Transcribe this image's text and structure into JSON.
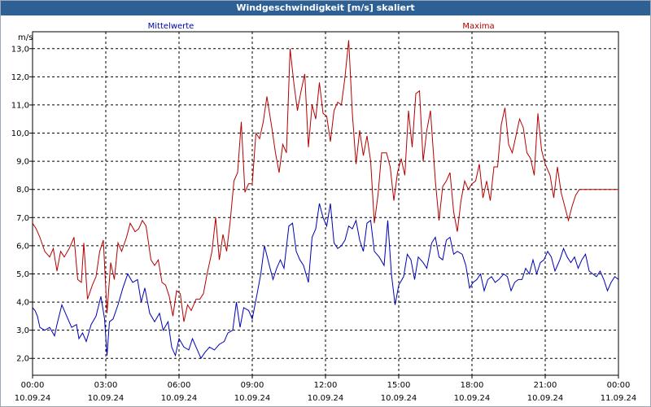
{
  "window": {
    "title": "Windgeschwindigkeit [m/s] skaliert"
  },
  "chart_data": {
    "type": "line",
    "title": "Windgeschwindigkeit [m/s] skaliert",
    "ylabel": "m/s",
    "xlabel": "",
    "ylim": [
      1.4,
      13.6
    ],
    "xlim": [
      0,
      24
    ],
    "yticks": [
      "2,0",
      "3,0",
      "4,0",
      "5,0",
      "6,0",
      "7,0",
      "8,0",
      "9,0",
      "10,0",
      "11,0",
      "12,0",
      "13,0"
    ],
    "xticks": [
      {
        "time": "00:00",
        "date": "10.09.24"
      },
      {
        "time": "03:00",
        "date": "10.09.24"
      },
      {
        "time": "06:00",
        "date": "10.09.24"
      },
      {
        "time": "09:00",
        "date": "10.09.24"
      },
      {
        "time": "12:00",
        "date": "10.09.24"
      },
      {
        "time": "15:00",
        "date": "10.09.24"
      },
      {
        "time": "18:00",
        "date": "10.09.24"
      },
      {
        "time": "21:00",
        "date": "10.09.24"
      },
      {
        "time": "00:00",
        "date": "11.09.24"
      }
    ],
    "grid": true,
    "series": [
      {
        "name": "Mittelwerte",
        "color": "#0000b4",
        "values": [
          [
            0.0,
            3.8
          ],
          [
            0.1,
            3.7
          ],
          [
            0.2,
            3.5
          ],
          [
            0.3,
            3.1
          ],
          [
            0.5,
            3.0
          ],
          [
            0.7,
            3.1
          ],
          [
            0.9,
            2.8
          ],
          [
            1.0,
            3.2
          ],
          [
            1.2,
            3.9
          ],
          [
            1.4,
            3.5
          ],
          [
            1.6,
            3.1
          ],
          [
            1.8,
            3.2
          ],
          [
            1.9,
            2.7
          ],
          [
            2.05,
            2.9
          ],
          [
            2.2,
            2.6
          ],
          [
            2.4,
            3.2
          ],
          [
            2.6,
            3.5
          ],
          [
            2.8,
            4.2
          ],
          [
            2.95,
            3.4
          ],
          [
            3.05,
            2.1
          ],
          [
            3.15,
            3.3
          ],
          [
            3.3,
            3.4
          ],
          [
            3.5,
            3.9
          ],
          [
            3.7,
            4.5
          ],
          [
            3.9,
            5.0
          ],
          [
            4.1,
            4.7
          ],
          [
            4.3,
            4.8
          ],
          [
            4.45,
            4.0
          ],
          [
            4.6,
            4.5
          ],
          [
            4.8,
            3.6
          ],
          [
            5.0,
            3.3
          ],
          [
            5.2,
            3.6
          ],
          [
            5.35,
            3.0
          ],
          [
            5.55,
            3.3
          ],
          [
            5.7,
            2.4
          ],
          [
            5.85,
            2.1
          ],
          [
            6.0,
            2.7
          ],
          [
            6.2,
            2.4
          ],
          [
            6.4,
            2.3
          ],
          [
            6.55,
            2.7
          ],
          [
            6.75,
            2.3
          ],
          [
            6.9,
            2.0
          ],
          [
            7.05,
            2.2
          ],
          [
            7.25,
            2.4
          ],
          [
            7.45,
            2.3
          ],
          [
            7.65,
            2.5
          ],
          [
            7.85,
            2.6
          ],
          [
            8.0,
            2.9
          ],
          [
            8.2,
            3.0
          ],
          [
            8.35,
            4.0
          ],
          [
            8.5,
            3.1
          ],
          [
            8.65,
            3.8
          ],
          [
            8.85,
            3.7
          ],
          [
            9.0,
            3.4
          ],
          [
            9.2,
            4.3
          ],
          [
            9.35,
            5.0
          ],
          [
            9.5,
            6.0
          ],
          [
            9.7,
            5.3
          ],
          [
            9.85,
            4.8
          ],
          [
            10.0,
            5.2
          ],
          [
            10.15,
            5.5
          ],
          [
            10.3,
            5.2
          ],
          [
            10.5,
            6.7
          ],
          [
            10.65,
            6.8
          ],
          [
            10.8,
            5.8
          ],
          [
            10.95,
            5.5
          ],
          [
            11.1,
            5.3
          ],
          [
            11.3,
            4.7
          ],
          [
            11.45,
            6.3
          ],
          [
            11.6,
            6.6
          ],
          [
            11.75,
            7.5
          ],
          [
            11.9,
            7.0
          ],
          [
            12.05,
            6.7
          ],
          [
            12.2,
            7.5
          ],
          [
            12.35,
            6.1
          ],
          [
            12.5,
            5.9
          ],
          [
            12.65,
            6.0
          ],
          [
            12.8,
            6.2
          ],
          [
            12.95,
            6.7
          ],
          [
            13.1,
            6.6
          ],
          [
            13.25,
            6.9
          ],
          [
            13.4,
            6.2
          ],
          [
            13.55,
            5.8
          ],
          [
            13.7,
            6.8
          ],
          [
            13.85,
            6.9
          ],
          [
            14.0,
            5.8
          ],
          [
            14.2,
            5.6
          ],
          [
            14.4,
            5.3
          ],
          [
            14.55,
            6.9
          ],
          [
            14.7,
            5.0
          ],
          [
            14.85,
            3.9
          ],
          [
            15.0,
            4.6
          ],
          [
            15.2,
            4.9
          ],
          [
            15.35,
            5.7
          ],
          [
            15.5,
            5.5
          ],
          [
            15.65,
            4.8
          ],
          [
            15.8,
            5.6
          ],
          [
            16.0,
            5.4
          ],
          [
            16.15,
            5.2
          ],
          [
            16.35,
            6.1
          ],
          [
            16.5,
            6.3
          ],
          [
            16.65,
            5.6
          ],
          [
            16.8,
            5.5
          ],
          [
            16.95,
            6.2
          ],
          [
            17.1,
            6.3
          ],
          [
            17.25,
            5.7
          ],
          [
            17.4,
            5.8
          ],
          [
            17.6,
            5.7
          ],
          [
            17.75,
            5.3
          ],
          [
            17.9,
            4.5
          ],
          [
            18.05,
            4.7
          ],
          [
            18.2,
            4.8
          ],
          [
            18.35,
            5.0
          ],
          [
            18.5,
            4.4
          ],
          [
            18.65,
            4.8
          ],
          [
            18.8,
            4.9
          ],
          [
            18.95,
            4.7
          ],
          [
            19.1,
            4.8
          ],
          [
            19.3,
            5.0
          ],
          [
            19.45,
            4.9
          ],
          [
            19.6,
            4.4
          ],
          [
            19.75,
            4.7
          ],
          [
            19.9,
            4.8
          ],
          [
            20.05,
            4.8
          ],
          [
            20.2,
            5.2
          ],
          [
            20.35,
            5.0
          ],
          [
            20.5,
            5.5
          ],
          [
            20.65,
            5.0
          ],
          [
            20.8,
            5.4
          ],
          [
            20.95,
            5.5
          ],
          [
            21.1,
            5.8
          ],
          [
            21.25,
            5.6
          ],
          [
            21.4,
            5.1
          ],
          [
            21.6,
            5.5
          ],
          [
            21.75,
            5.9
          ],
          [
            21.9,
            5.6
          ],
          [
            22.05,
            5.4
          ],
          [
            22.2,
            5.6
          ],
          [
            22.35,
            5.2
          ],
          [
            22.5,
            5.5
          ],
          [
            22.65,
            5.7
          ],
          [
            22.8,
            5.1
          ],
          [
            22.95,
            5.0
          ],
          [
            23.1,
            4.9
          ],
          [
            23.25,
            5.1
          ],
          [
            23.4,
            4.8
          ],
          [
            23.55,
            4.4
          ],
          [
            23.7,
            4.7
          ],
          [
            23.85,
            4.9
          ],
          [
            24.0,
            4.8
          ]
        ]
      },
      {
        "name": "Maxima",
        "color": "#b40000",
        "values": [
          [
            0.0,
            6.8
          ],
          [
            0.15,
            6.6
          ],
          [
            0.3,
            6.3
          ],
          [
            0.5,
            5.8
          ],
          [
            0.7,
            5.6
          ],
          [
            0.85,
            5.9
          ],
          [
            1.0,
            5.1
          ],
          [
            1.15,
            5.8
          ],
          [
            1.3,
            5.6
          ],
          [
            1.5,
            5.9
          ],
          [
            1.7,
            6.3
          ],
          [
            1.85,
            4.8
          ],
          [
            2.0,
            4.7
          ],
          [
            2.1,
            6.1
          ],
          [
            2.25,
            4.1
          ],
          [
            2.45,
            4.6
          ],
          [
            2.6,
            4.9
          ],
          [
            2.75,
            5.8
          ],
          [
            2.9,
            6.2
          ],
          [
            3.05,
            3.6
          ],
          [
            3.2,
            5.4
          ],
          [
            3.35,
            4.8
          ],
          [
            3.5,
            6.1
          ],
          [
            3.65,
            5.8
          ],
          [
            3.85,
            6.3
          ],
          [
            4.0,
            6.8
          ],
          [
            4.2,
            6.5
          ],
          [
            4.35,
            6.6
          ],
          [
            4.5,
            6.9
          ],
          [
            4.65,
            6.7
          ],
          [
            4.85,
            5.5
          ],
          [
            5.0,
            5.3
          ],
          [
            5.15,
            5.5
          ],
          [
            5.3,
            4.7
          ],
          [
            5.45,
            4.6
          ],
          [
            5.6,
            4.2
          ],
          [
            5.75,
            3.5
          ],
          [
            5.9,
            4.4
          ],
          [
            6.05,
            4.3
          ],
          [
            6.2,
            3.3
          ],
          [
            6.35,
            3.9
          ],
          [
            6.5,
            3.7
          ],
          [
            6.7,
            4.1
          ],
          [
            6.85,
            4.1
          ],
          [
            7.0,
            4.3
          ],
          [
            7.15,
            5.0
          ],
          [
            7.35,
            5.8
          ],
          [
            7.5,
            7.0
          ],
          [
            7.65,
            5.5
          ],
          [
            7.8,
            6.4
          ],
          [
            7.95,
            5.8
          ],
          [
            8.1,
            6.9
          ],
          [
            8.25,
            8.3
          ],
          [
            8.4,
            8.6
          ],
          [
            8.55,
            10.4
          ],
          [
            8.7,
            7.9
          ],
          [
            8.85,
            8.2
          ],
          [
            9.0,
            8.2
          ],
          [
            9.15,
            10.0
          ],
          [
            9.3,
            9.8
          ],
          [
            9.45,
            10.4
          ],
          [
            9.6,
            11.3
          ],
          [
            9.8,
            10.2
          ],
          [
            9.95,
            9.3
          ],
          [
            10.1,
            8.6
          ],
          [
            10.25,
            9.6
          ],
          [
            10.4,
            9.3
          ],
          [
            10.55,
            13.0
          ],
          [
            10.7,
            11.8
          ],
          [
            10.85,
            10.8
          ],
          [
            11.0,
            11.5
          ],
          [
            11.15,
            12.1
          ],
          [
            11.3,
            9.5
          ],
          [
            11.45,
            11.0
          ],
          [
            11.6,
            10.5
          ],
          [
            11.75,
            11.8
          ],
          [
            11.9,
            10.7
          ],
          [
            12.05,
            10.6
          ],
          [
            12.2,
            9.7
          ],
          [
            12.35,
            10.8
          ],
          [
            12.5,
            11.1
          ],
          [
            12.65,
            11.0
          ],
          [
            12.8,
            12.0
          ],
          [
            12.95,
            13.3
          ],
          [
            13.1,
            10.7
          ],
          [
            13.25,
            8.9
          ],
          [
            13.4,
            10.1
          ],
          [
            13.55,
            9.2
          ],
          [
            13.7,
            9.9
          ],
          [
            13.85,
            9.0
          ],
          [
            14.0,
            6.8
          ],
          [
            14.15,
            7.8
          ],
          [
            14.3,
            9.3
          ],
          [
            14.5,
            9.3
          ],
          [
            14.65,
            8.8
          ],
          [
            14.8,
            7.6
          ],
          [
            14.95,
            8.6
          ],
          [
            15.1,
            9.1
          ],
          [
            15.25,
            8.5
          ],
          [
            15.4,
            10.8
          ],
          [
            15.55,
            9.5
          ],
          [
            15.7,
            11.4
          ],
          [
            15.85,
            11.5
          ],
          [
            16.0,
            9.0
          ],
          [
            16.15,
            10.1
          ],
          [
            16.3,
            10.8
          ],
          [
            16.5,
            8.3
          ],
          [
            16.65,
            6.9
          ],
          [
            16.8,
            8.1
          ],
          [
            16.95,
            8.3
          ],
          [
            17.1,
            8.6
          ],
          [
            17.25,
            7.2
          ],
          [
            17.4,
            6.5
          ],
          [
            17.55,
            7.6
          ],
          [
            17.7,
            8.3
          ],
          [
            17.85,
            8.0
          ],
          [
            18.0,
            8.2
          ],
          [
            18.15,
            8.3
          ],
          [
            18.3,
            8.9
          ],
          [
            18.45,
            7.7
          ],
          [
            18.6,
            8.3
          ],
          [
            18.75,
            7.6
          ],
          [
            18.9,
            8.8
          ],
          [
            19.05,
            8.8
          ],
          [
            19.2,
            10.3
          ],
          [
            19.35,
            10.9
          ],
          [
            19.5,
            9.6
          ],
          [
            19.65,
            9.3
          ],
          [
            19.8,
            9.9
          ],
          [
            19.95,
            10.5
          ],
          [
            20.1,
            10.2
          ],
          [
            20.25,
            9.3
          ],
          [
            20.4,
            9.1
          ],
          [
            20.55,
            8.5
          ],
          [
            20.7,
            10.7
          ],
          [
            20.85,
            9.4
          ],
          [
            21.0,
            8.9
          ],
          [
            21.2,
            8.5
          ],
          [
            21.35,
            7.7
          ],
          [
            21.5,
            8.8
          ],
          [
            21.65,
            7.9
          ],
          [
            21.8,
            7.4
          ],
          [
            21.95,
            6.9
          ],
          [
            22.1,
            7.4
          ],
          [
            22.25,
            7.8
          ],
          [
            22.4,
            8.0
          ],
          [
            24.0,
            8.0
          ]
        ]
      }
    ]
  }
}
